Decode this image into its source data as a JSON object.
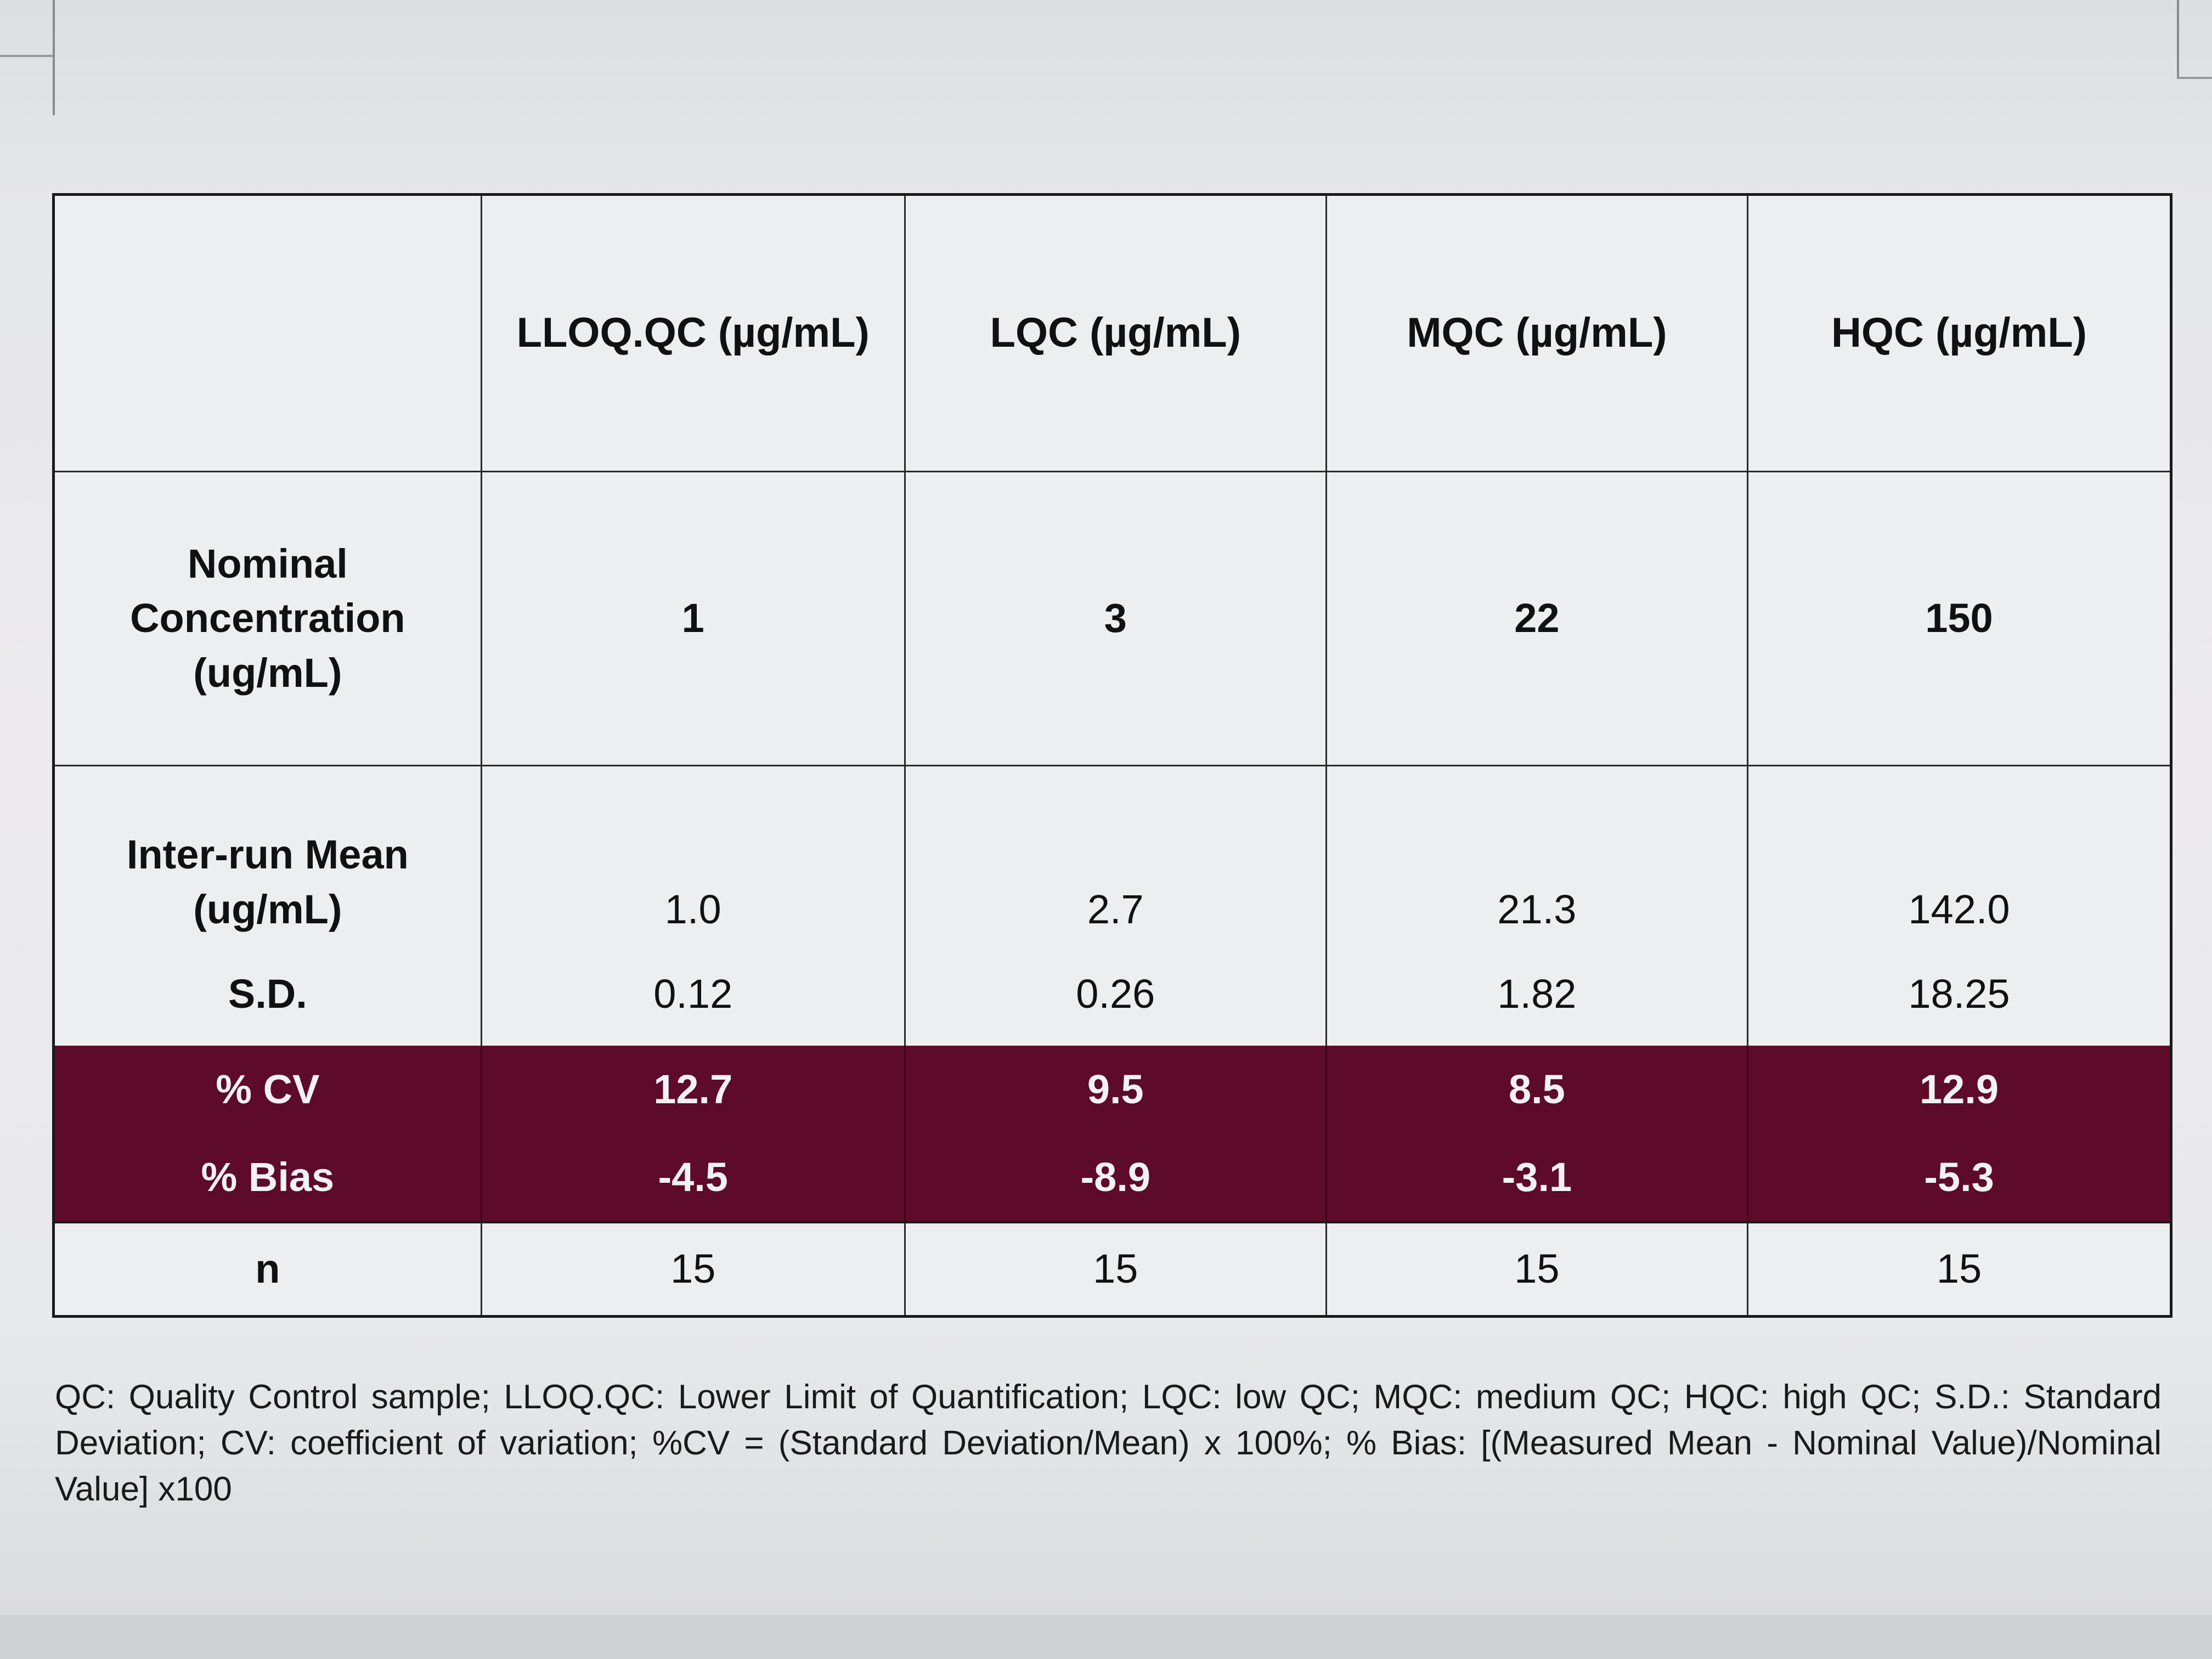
{
  "table": {
    "columns": [
      "",
      "LLOQ.QC (µg/mL)",
      "LQC (µg/mL)",
      "MQC (µg/mL)",
      "HQC (µg/mL)"
    ],
    "rows": [
      {
        "label": "Nominal Concentration (ug/mL)",
        "values": [
          "1",
          "3",
          "22",
          "150"
        ]
      },
      {
        "label": "Inter-run Mean (ug/mL)",
        "values": [
          "1.0",
          "2.7",
          "21.3",
          "142.0"
        ]
      },
      {
        "label": "S.D.",
        "values": [
          "0.12",
          "0.26",
          "1.82",
          "18.25"
        ]
      },
      {
        "label": "% CV",
        "values": [
          "12.7",
          "9.5",
          "8.5",
          "12.9"
        ]
      },
      {
        "label": "% Bias",
        "values": [
          "-4.5",
          "-8.9",
          "-3.1",
          "-5.3"
        ]
      },
      {
        "label": "n",
        "values": [
          "15",
          "15",
          "15",
          "15"
        ]
      }
    ]
  },
  "footnote": "QC: Quality Control sample; LLOQ.QC: Lower Limit of Quantification; LQC: low QC; MQC: medium QC; HQC: high QC; S.D.: Standard Deviation; CV: coefficient of variation; %CV = (Standard Deviation/Mean) x 100%; % Bias: [(Measured Mean - Nominal Value)/Nominal Value] x100",
  "colors": {
    "highlight_rows": "#5e0a2a",
    "highlight_text": "#f2f2f2"
  }
}
